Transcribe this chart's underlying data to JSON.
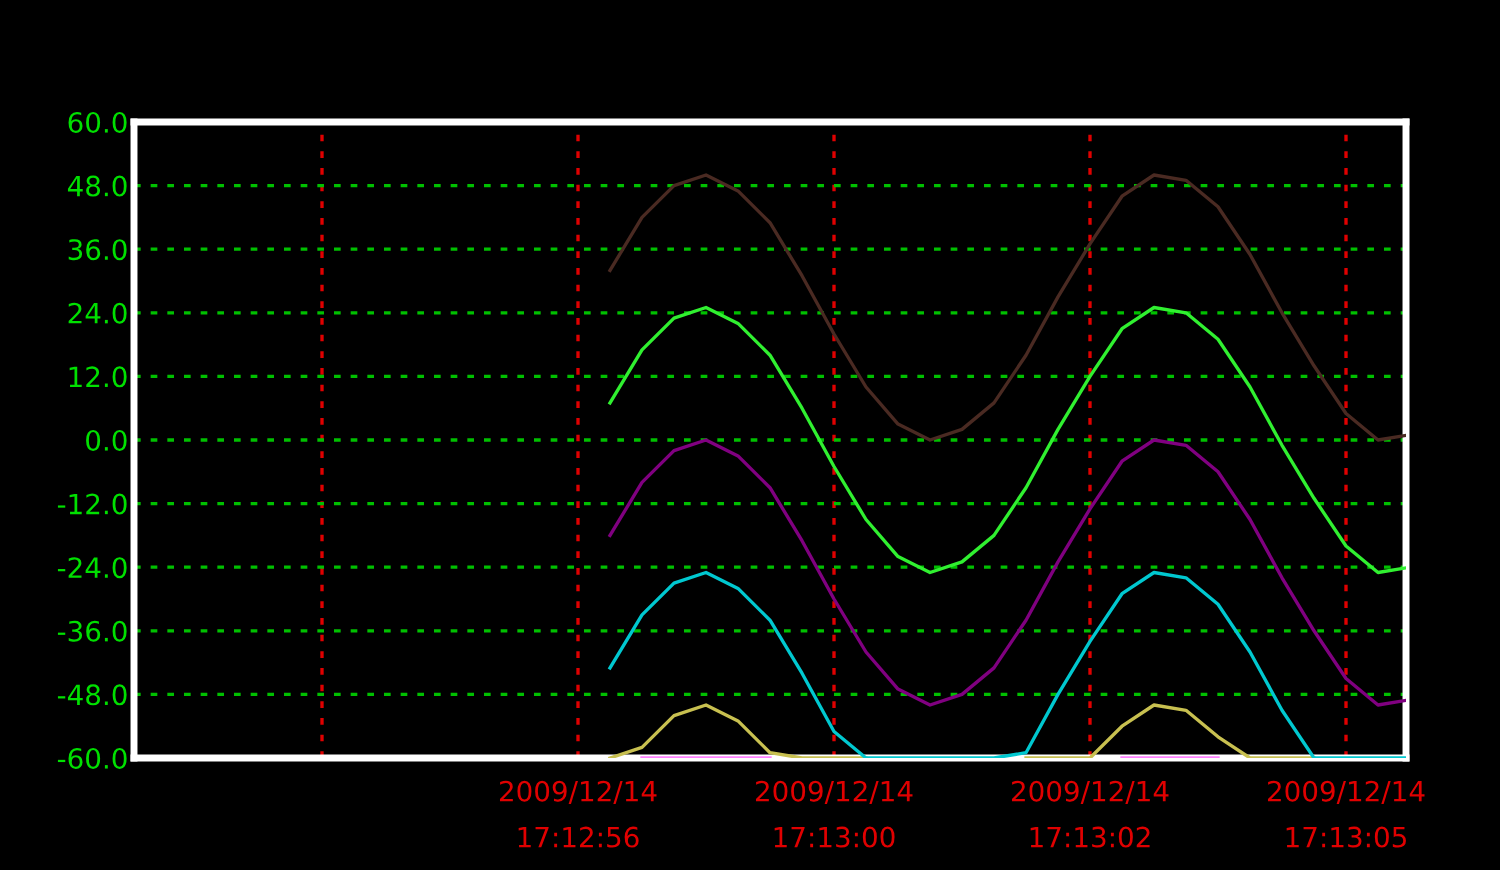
{
  "chart_data": {
    "type": "line",
    "categories": [
      null,
      null,
      null,
      null,
      null,
      null,
      null,
      null,
      "2009/12/14\n17:12:56",
      null,
      null,
      null,
      null,
      null,
      null,
      null,
      "2009/12/14\n17:13:00",
      null,
      null,
      null,
      null,
      null,
      null,
      null,
      "2009/12/14\n17:13:02",
      null,
      null,
      null,
      null,
      null,
      null,
      null,
      "2009/12/14\n17:13:05",
      null,
      null
    ],
    "series": [
      {
        "color": "#4a2a22",
        "values": [
          null,
          null,
          null,
          null,
          null,
          null,
          null,
          null,
          null,
          32,
          42,
          48,
          50,
          47,
          41,
          31,
          20,
          10,
          3,
          0,
          2,
          7,
          16,
          27,
          37,
          46,
          50,
          49,
          44,
          35,
          24,
          14,
          5,
          0,
          1
        ]
      },
      {
        "color": "#30f030",
        "values": [
          null,
          null,
          null,
          null,
          null,
          null,
          null,
          null,
          null,
          7,
          17,
          23,
          25,
          22,
          16,
          6,
          -5,
          -15,
          -22,
          -25,
          -23,
          -18,
          -9,
          2,
          12,
          21,
          25,
          24,
          19,
          10,
          -1,
          -11,
          -20,
          -25,
          -24
        ]
      },
      {
        "color": "#800080",
        "values": [
          null,
          null,
          null,
          null,
          null,
          null,
          null,
          null,
          null,
          -18,
          -8,
          -2,
          0,
          -3,
          -9,
          -19,
          -30,
          -40,
          -47,
          -50,
          -48,
          -43,
          -34,
          -23,
          -13,
          -4,
          0,
          -1,
          -6,
          -15,
          -26,
          -36,
          -45,
          -50,
          -49
        ]
      },
      {
        "color": "#00c8d0",
        "values": [
          null,
          null,
          null,
          null,
          null,
          null,
          null,
          null,
          null,
          -43,
          -33,
          -27,
          -25,
          -28,
          -34,
          -44,
          -55,
          -60,
          -60,
          -60,
          -60,
          -60,
          -59,
          -48,
          -38,
          -29,
          -25,
          -26,
          -31,
          -40,
          -51,
          -60,
          -60,
          -60,
          -60
        ]
      },
      {
        "color": "#c8c050",
        "values": [
          null,
          null,
          null,
          null,
          null,
          null,
          null,
          null,
          null,
          -60,
          -58,
          -52,
          -50,
          -53,
          -59,
          -60,
          -60,
          -60,
          null,
          null,
          null,
          null,
          -60,
          -60,
          -60,
          -54,
          -50,
          -51,
          -56,
          -60,
          -60,
          -60,
          null,
          null,
          null
        ]
      },
      {
        "color": "#ff80ff",
        "values": [
          null,
          null,
          null,
          null,
          null,
          null,
          null,
          null,
          null,
          null,
          -60,
          -60,
          -60,
          -60,
          -60,
          null,
          null,
          null,
          null,
          null,
          null,
          null,
          null,
          null,
          null,
          -60,
          -60,
          -60,
          -60,
          null,
          null,
          null,
          null,
          null,
          null
        ]
      }
    ],
    "ylim": [
      -60,
      60
    ],
    "yticks": [
      {
        "value": -60,
        "label": "-60.0"
      },
      {
        "value": -48,
        "label": "-48.0"
      },
      {
        "value": -36,
        "label": "-36.0"
      },
      {
        "value": -24,
        "label": "-24.0"
      },
      {
        "value": -12,
        "label": "-12.0"
      },
      {
        "value": 0,
        "label": "0.0"
      },
      {
        "value": 12,
        "label": "12.0"
      },
      {
        "value": 24,
        "label": "24.0"
      },
      {
        "value": 36,
        "label": "36.0"
      },
      {
        "value": 48,
        "label": "48.0"
      },
      {
        "value": 60,
        "label": "60.0"
      }
    ],
    "grid": true,
    "marker": "none",
    "line_style": "solid"
  }
}
